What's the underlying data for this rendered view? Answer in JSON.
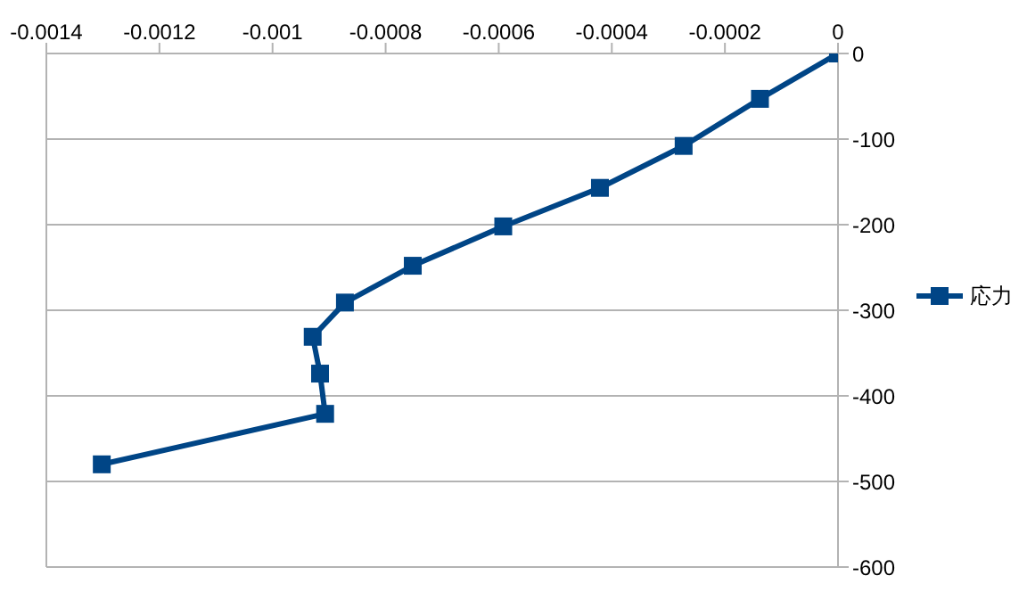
{
  "chart_data": {
    "type": "line",
    "x": [
      0,
      -0.000138,
      -0.000273,
      -0.000421,
      -0.000592,
      -0.000752,
      -0.000872,
      -0.000929,
      -0.000916,
      -0.000907,
      -0.001302
    ],
    "series": [
      {
        "name": "応力",
        "color": "#004586",
        "values": [
          0,
          -53,
          -108,
          -157,
          -202,
          -248,
          -291,
          -331,
          -374,
          -421,
          -480
        ]
      }
    ],
    "xlim": [
      -0.0014,
      0
    ],
    "xticks": [
      -0.0014,
      -0.0012,
      -0.001,
      -0.0008,
      -0.0006,
      -0.0004,
      -0.0002,
      0
    ],
    "ylim": [
      -600,
      0
    ],
    "yticks": [
      -600,
      -500,
      -400,
      -300,
      -200,
      -100,
      0
    ],
    "grid": "y",
    "legend": "right",
    "marker": "square",
    "line_style": "solid"
  }
}
